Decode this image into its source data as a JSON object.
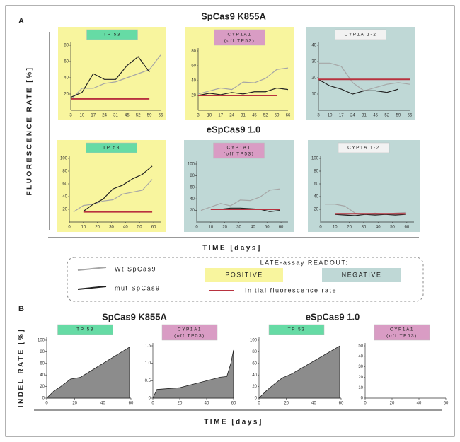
{
  "figure": {
    "panel_a": "A",
    "panel_b": "B",
    "title_a1": "SpCas9 K855A",
    "title_a2": "eSpCas9 1.0",
    "y_label_a": "FLUORESCENCE RATE [%]",
    "x_label_a": "TIME [days]",
    "legend": {
      "wt": "Wt SpCas9",
      "wt_color": "#a6a6a6",
      "mut": "mut SpCas9",
      "mut_color": "#222222",
      "heading": "LATE-assay READOUT:",
      "positive": "POSITIVE",
      "positive_color": "#f8f59e",
      "negative": "NEGATIVE",
      "negative_color": "#bfd8d6",
      "baseline": "Initial fluorescence rate",
      "baseline_color": "#b8323f"
    },
    "title_b1": "SpCas9 K855A",
    "title_b2": "eSpCas9 1.0",
    "y_label_b": "INDEL RATE [%]",
    "x_label_b": "TIME [days]"
  },
  "chart_data": [
    {
      "type": "line",
      "title": "TP 53",
      "badge_color": "#66dba5",
      "background": "#f8f59e",
      "categories": [
        3,
        10,
        17,
        24,
        31,
        45,
        52,
        59,
        66
      ],
      "ylim": [
        0,
        80
      ],
      "yticks": [
        20,
        40,
        60,
        80
      ],
      "series": [
        {
          "color": "#a6a6a6",
          "values": [
            13,
            27,
            27,
            33,
            35,
            40,
            45,
            50,
            68
          ]
        },
        {
          "color": "#222222",
          "values": [
            16,
            22,
            45,
            38,
            38,
            55,
            66,
            47,
            null
          ]
        },
        {
          "color": "#b8323f",
          "width": 2,
          "values": [
            14,
            14,
            14,
            14,
            14,
            14,
            14,
            14,
            null
          ]
        }
      ]
    },
    {
      "type": "line",
      "title": "CYP1A1",
      "subtitle": "(off TP53)",
      "badge_color": "#d99cc4",
      "background": "#f8f59e",
      "categories": [
        3,
        10,
        17,
        24,
        31,
        45,
        52,
        59,
        66
      ],
      "ylim": [
        0,
        80
      ],
      "yticks": [
        20,
        40,
        60,
        80
      ],
      "series": [
        {
          "color": "#a6a6a6",
          "values": [
            22,
            26,
            30,
            28,
            38,
            37,
            43,
            55,
            57
          ]
        },
        {
          "color": "#222222",
          "values": [
            20,
            23,
            21,
            24,
            22,
            25,
            25,
            30,
            28
          ]
        },
        {
          "color": "#b8323f",
          "width": 2,
          "values": [
            20,
            20,
            20,
            20,
            20,
            20,
            20,
            20,
            null
          ]
        }
      ]
    },
    {
      "type": "line",
      "title": "CYP1A 1-2",
      "badge_color": "#f2f2f2",
      "background": "#bfd8d6",
      "categories": [
        3,
        10,
        17,
        24,
        31,
        45,
        52,
        59,
        66
      ],
      "ylim": [
        0,
        40
      ],
      "yticks": [
        10,
        20,
        30,
        40
      ],
      "series": [
        {
          "color": "#a6a6a6",
          "values": [
            29,
            29,
            27,
            17,
            12,
            14,
            16,
            17,
            16
          ]
        },
        {
          "color": "#222222",
          "values": [
            19,
            15,
            13,
            10,
            12,
            12,
            11,
            13,
            null
          ]
        },
        {
          "color": "#b8323f",
          "width": 2,
          "values": [
            19,
            19,
            19,
            19,
            19,
            19,
            19,
            19,
            19
          ]
        }
      ]
    },
    {
      "type": "line",
      "title": "TP 53",
      "badge_color": "#66dba5",
      "background": "#f8f59e",
      "x": [
        3,
        10,
        17,
        24,
        31,
        38,
        45,
        52,
        59
      ],
      "xlim": [
        0,
        65
      ],
      "xticks": [
        0,
        10,
        20,
        30,
        40,
        50,
        60
      ],
      "ylim": [
        0,
        100
      ],
      "yticks": [
        20,
        40,
        60,
        80,
        100
      ],
      "series": [
        {
          "color": "#a6a6a6",
          "values": [
            16,
            26,
            28,
            33,
            35,
            44,
            47,
            50,
            67
          ]
        },
        {
          "color": "#222222",
          "values": [
            null,
            17,
            28,
            36,
            52,
            58,
            68,
            75,
            88
          ]
        },
        {
          "color": "#b8323f",
          "width": 2,
          "values": [
            null,
            16,
            16,
            16,
            16,
            16,
            16,
            16,
            16
          ]
        }
      ]
    },
    {
      "type": "line",
      "title": "CYP1A1",
      "subtitle": "(off TP53)",
      "badge_color": "#d99cc4",
      "background": "#bfd8d6",
      "x": [
        3,
        10,
        17,
        24,
        31,
        38,
        45,
        52,
        59
      ],
      "xlim": [
        0,
        65
      ],
      "xticks": [
        0,
        10,
        20,
        30,
        40,
        50,
        60
      ],
      "ylim": [
        0,
        100
      ],
      "yticks": [
        20,
        40,
        60,
        80,
        100
      ],
      "series": [
        {
          "color": "#a6a6a6",
          "values": [
            20,
            26,
            32,
            28,
            38,
            37,
            43,
            55,
            57
          ]
        },
        {
          "color": "#222222",
          "values": [
            null,
            22,
            22,
            24,
            24,
            23,
            22,
            18,
            20
          ]
        },
        {
          "color": "#b8323f",
          "width": 2,
          "values": [
            null,
            22,
            22,
            22,
            22,
            22,
            22,
            22,
            22
          ]
        }
      ]
    },
    {
      "type": "line",
      "title": "CYP1A 1-2",
      "badge_color": "#f2f2f2",
      "background": "#bfd8d6",
      "x": [
        3,
        10,
        17,
        24,
        31,
        38,
        45,
        52,
        59
      ],
      "xlim": [
        0,
        65
      ],
      "xticks": [
        0,
        10,
        20,
        30,
        40,
        50,
        60
      ],
      "ylim": [
        0,
        100
      ],
      "yticks": [
        20,
        40,
        60,
        80,
        100
      ],
      "series": [
        {
          "color": "#a6a6a6",
          "values": [
            28,
            28,
            25,
            14,
            12,
            14,
            12,
            14,
            15
          ]
        },
        {
          "color": "#222222",
          "values": [
            null,
            12,
            11,
            10,
            12,
            11,
            12,
            11,
            12
          ]
        },
        {
          "color": "#b8323f",
          "width": 2,
          "values": [
            null,
            13,
            13,
            13,
            13,
            13,
            13,
            13,
            13
          ]
        }
      ]
    },
    {
      "type": "area",
      "title": "TP 53",
      "badge_color": "#66dba5",
      "color": "#8c8c8c",
      "x": [
        0,
        5,
        10,
        17,
        24,
        59
      ],
      "values": [
        0,
        12,
        20,
        33,
        36,
        88
      ],
      "xlim": [
        0,
        60
      ],
      "xticks": [
        0,
        20,
        40,
        60
      ],
      "ylim": [
        0,
        100
      ],
      "yticks": [
        0,
        20,
        40,
        60,
        80,
        100
      ]
    },
    {
      "type": "area",
      "title": "CYP1A1",
      "subtitle": "(off TP53)",
      "badge_color": "#d99cc4",
      "color": "#8c8c8c",
      "x": [
        0,
        3,
        10,
        20,
        30,
        40,
        50,
        55,
        58,
        60
      ],
      "values": [
        0,
        0.25,
        0.27,
        0.3,
        0.4,
        0.5,
        0.6,
        0.62,
        1.0,
        1.38
      ],
      "xlim": [
        0,
        60
      ],
      "xticks": [
        0,
        20,
        40,
        60
      ],
      "ylim": [
        0,
        1.5
      ],
      "yticks": [
        0,
        0.5,
        {
          "value": 1,
          "label": "1.0"
        },
        1.5
      ]
    },
    {
      "type": "area",
      "title": "TP 53",
      "badge_color": "#66dba5",
      "color": "#8c8c8c",
      "x": [
        0,
        5,
        10,
        17,
        24,
        59
      ],
      "values": [
        0,
        12,
        22,
        35,
        42,
        90
      ],
      "xlim": [
        0,
        60
      ],
      "xticks": [
        0,
        20,
        40,
        60
      ],
      "ylim": [
        0,
        100
      ],
      "yticks": [
        0,
        20,
        40,
        60,
        80,
        100
      ]
    },
    {
      "type": "area",
      "title": "CYP1A1",
      "subtitle": "(off TP53)",
      "badge_color": "#d99cc4",
      "color": "#8c8c8c",
      "x": [],
      "values": [],
      "xlim": [
        0,
        60
      ],
      "xticks": [
        0,
        20,
        40,
        60
      ],
      "ylim": [
        0,
        50
      ],
      "yticks": [
        0,
        10,
        20,
        30,
        40,
        50
      ]
    }
  ]
}
